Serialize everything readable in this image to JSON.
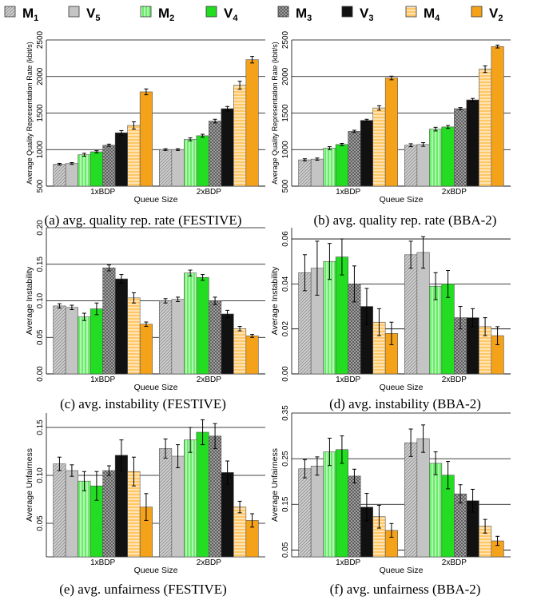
{
  "legend": {
    "entries": [
      {
        "base": "M",
        "sub": "1",
        "key": "M1"
      },
      {
        "base": "V",
        "sub": "5",
        "key": "V5"
      },
      {
        "base": "M",
        "sub": "2",
        "key": "M2"
      },
      {
        "base": "V",
        "sub": "4",
        "key": "V4"
      },
      {
        "base": "M",
        "sub": "3",
        "key": "M3"
      },
      {
        "base": "V",
        "sub": "3",
        "key": "V3"
      },
      {
        "base": "M",
        "sub": "4",
        "key": "M4"
      },
      {
        "base": "V",
        "sub": "2",
        "key": "V2"
      }
    ]
  },
  "series_style": [
    {
      "key": "M1",
      "color": "#d0d0d0",
      "pattern": "diag"
    },
    {
      "key": "V5",
      "color": "#c4c4c4",
      "pattern": "solid"
    },
    {
      "key": "M2",
      "color": "#66ee66",
      "pattern": "vert"
    },
    {
      "key": "V4",
      "color": "#22dd22",
      "pattern": "solid"
    },
    {
      "key": "M3",
      "color": "#505050",
      "pattern": "cross"
    },
    {
      "key": "V3",
      "color": "#111111",
      "pattern": "solid"
    },
    {
      "key": "M4",
      "color": "#ffc766",
      "pattern": "horiz"
    },
    {
      "key": "V2",
      "color": "#f5a21b",
      "pattern": "solid"
    }
  ],
  "chart_data": [
    {
      "id": "a",
      "type": "bar",
      "caption": "(a) avg. quality rep. rate (FESTIVE)",
      "ylabel": "Average Quality Representation Rate (kbit/s)",
      "xlabel": "Queue Size",
      "categories": [
        "1xBDP",
        "2xBDP"
      ],
      "ylim": [
        500,
        2500
      ],
      "yticks": [
        "500",
        "1000",
        "1500",
        "2000",
        "2500"
      ],
      "ytick_values": [
        500,
        1000,
        1500,
        2000,
        2500
      ],
      "grid": true,
      "series": [
        {
          "key": "M1",
          "values": [
            800,
            1000
          ],
          "err": [
            12,
            12
          ]
        },
        {
          "key": "V5",
          "values": [
            810,
            1000
          ],
          "err": [
            12,
            12
          ]
        },
        {
          "key": "M2",
          "values": [
            930,
            1140
          ],
          "err": [
            20,
            20
          ]
        },
        {
          "key": "V4",
          "values": [
            970,
            1190
          ],
          "err": [
            15,
            20
          ]
        },
        {
          "key": "M3",
          "values": [
            1060,
            1390
          ],
          "err": [
            15,
            25
          ]
        },
        {
          "key": "V3",
          "values": [
            1230,
            1560
          ],
          "err": [
            30,
            30
          ]
        },
        {
          "key": "M4",
          "values": [
            1330,
            1880
          ],
          "err": [
            50,
            55
          ]
        },
        {
          "key": "V2",
          "values": [
            1790,
            2230
          ],
          "err": [
            40,
            45
          ]
        }
      ]
    },
    {
      "id": "b",
      "type": "bar",
      "caption": "(b) avg. quality rep. rate (BBA-2)",
      "ylabel": "Average Quality Representation Rate (kbit/s)",
      "xlabel": "Queue Size",
      "categories": [
        "1xBDP",
        "2xBDP"
      ],
      "ylim": [
        500,
        2500
      ],
      "yticks": [
        "500",
        "1000",
        "1500",
        "2000",
        "2500"
      ],
      "ytick_values": [
        500,
        1000,
        1500,
        2000,
        2500
      ],
      "grid": true,
      "series": [
        {
          "key": "M1",
          "values": [
            860,
            1060
          ],
          "err": [
            15,
            20
          ]
        },
        {
          "key": "V5",
          "values": [
            870,
            1070
          ],
          "err": [
            15,
            25
          ]
        },
        {
          "key": "M2",
          "values": [
            1020,
            1280
          ],
          "err": [
            20,
            25
          ]
        },
        {
          "key": "V4",
          "values": [
            1070,
            1310
          ],
          "err": [
            15,
            20
          ]
        },
        {
          "key": "M3",
          "values": [
            1250,
            1560
          ],
          "err": [
            15,
            15
          ]
        },
        {
          "key": "V3",
          "values": [
            1400,
            1680
          ],
          "err": [
            15,
            20
          ]
        },
        {
          "key": "M4",
          "values": [
            1570,
            2100
          ],
          "err": [
            30,
            45
          ]
        },
        {
          "key": "V2",
          "values": [
            1980,
            2410
          ],
          "err": [
            25,
            20
          ]
        }
      ]
    },
    {
      "id": "c",
      "type": "bar",
      "caption": "(c) avg. instability (FESTIVE)",
      "ylabel": "Average Instability",
      "xlabel": "Queue Size",
      "categories": [
        "1xBDP",
        "2xBDP"
      ],
      "ylim": [
        0,
        0.2
      ],
      "yticks": [
        "0.00",
        "0.05",
        "0.10",
        "0.15",
        "0.20"
      ],
      "ytick_values": [
        0,
        0.05,
        0.1,
        0.15,
        0.2
      ],
      "grid": true,
      "series": [
        {
          "key": "M1",
          "values": [
            0.093,
            0.1
          ],
          "err": [
            0.003,
            0.003
          ]
        },
        {
          "key": "V5",
          "values": [
            0.091,
            0.102
          ],
          "err": [
            0.003,
            0.003
          ]
        },
        {
          "key": "M2",
          "values": [
            0.078,
            0.138
          ],
          "err": [
            0.005,
            0.004
          ]
        },
        {
          "key": "V4",
          "values": [
            0.089,
            0.132
          ],
          "err": [
            0.008,
            0.004
          ]
        },
        {
          "key": "M3",
          "values": [
            0.145,
            0.1
          ],
          "err": [
            0.004,
            0.005
          ]
        },
        {
          "key": "V3",
          "values": [
            0.13,
            0.082
          ],
          "err": [
            0.006,
            0.005
          ]
        },
        {
          "key": "M4",
          "values": [
            0.104,
            0.062
          ],
          "err": [
            0.007,
            0.003
          ]
        },
        {
          "key": "V2",
          "values": [
            0.068,
            0.052
          ],
          "err": [
            0.003,
            0.002
          ]
        }
      ]
    },
    {
      "id": "d",
      "type": "bar",
      "caption": "(d) avg. instability (BBA-2)",
      "ylabel": "Average Instability",
      "xlabel": "Queue Size",
      "categories": [
        "1xBDP",
        "2xBDP"
      ],
      "ylim": [
        0,
        0.065
      ],
      "yticks": [
        "0.00",
        "0.02",
        "0.04",
        "0.06"
      ],
      "ytick_values": [
        0,
        0.02,
        0.04,
        0.06
      ],
      "grid": true,
      "series": [
        {
          "key": "M1",
          "values": [
            0.045,
            0.053
          ],
          "err": [
            0.008,
            0.006
          ]
        },
        {
          "key": "V5",
          "values": [
            0.047,
            0.054
          ],
          "err": [
            0.012,
            0.007
          ]
        },
        {
          "key": "M2",
          "values": [
            0.05,
            0.039
          ],
          "err": [
            0.008,
            0.006
          ]
        },
        {
          "key": "V4",
          "values": [
            0.052,
            0.04
          ],
          "err": [
            0.008,
            0.006
          ]
        },
        {
          "key": "M3",
          "values": [
            0.04,
            0.025
          ],
          "err": [
            0.008,
            0.005
          ]
        },
        {
          "key": "V3",
          "values": [
            0.03,
            0.025
          ],
          "err": [
            0.008,
            0.004
          ]
        },
        {
          "key": "M4",
          "values": [
            0.023,
            0.021
          ],
          "err": [
            0.006,
            0.004
          ]
        },
        {
          "key": "V2",
          "values": [
            0.018,
            0.017
          ],
          "err": [
            0.005,
            0.004
          ]
        }
      ]
    },
    {
      "id": "e",
      "type": "bar",
      "caption": "(e) avg. unfairness (FESTIVE)",
      "ylabel": "Average Unfairness",
      "xlabel": "Queue Size",
      "categories": [
        "1xBDP",
        "2xBDP"
      ],
      "ylim": [
        0.015,
        0.165
      ],
      "yticks": [
        "0.05",
        "0.10",
        "0.15"
      ],
      "ytick_values": [
        0.05,
        0.1,
        0.15
      ],
      "grid": true,
      "series": [
        {
          "key": "M1",
          "values": [
            0.112,
            0.128
          ],
          "err": [
            0.007,
            0.01
          ]
        },
        {
          "key": "V5",
          "values": [
            0.105,
            0.12
          ],
          "err": [
            0.006,
            0.012
          ]
        },
        {
          "key": "M2",
          "values": [
            0.094,
            0.137
          ],
          "err": [
            0.01,
            0.013
          ]
        },
        {
          "key": "V4",
          "values": [
            0.089,
            0.145
          ],
          "err": [
            0.015,
            0.013
          ]
        },
        {
          "key": "M3",
          "values": [
            0.105,
            0.141
          ],
          "err": [
            0.005,
            0.013
          ]
        },
        {
          "key": "V3",
          "values": [
            0.121,
            0.103
          ],
          "err": [
            0.016,
            0.012
          ]
        },
        {
          "key": "M4",
          "values": [
            0.104,
            0.067
          ],
          "err": [
            0.015,
            0.006
          ]
        },
        {
          "key": "V2",
          "values": [
            0.067,
            0.053
          ],
          "err": [
            0.014,
            0.007
          ]
        }
      ]
    },
    {
      "id": "f",
      "type": "bar",
      "caption": "(f) avg. unfairness (BBA-2)",
      "ylabel": "Average Unfairness",
      "xlabel": "Queue Size",
      "categories": [
        "1xBDP",
        "2xBDP"
      ],
      "ylim": [
        0.035,
        0.35
      ],
      "yticks": [
        "0.05",
        "0.15",
        "0.25",
        "0.35"
      ],
      "ytick_values": [
        0.05,
        0.15,
        0.25,
        0.35
      ],
      "grid": true,
      "series": [
        {
          "key": "M1",
          "values": [
            0.228,
            0.285
          ],
          "err": [
            0.02,
            0.03
          ]
        },
        {
          "key": "V5",
          "values": [
            0.234,
            0.294
          ],
          "err": [
            0.02,
            0.03
          ]
        },
        {
          "key": "M2",
          "values": [
            0.265,
            0.24
          ],
          "err": [
            0.03,
            0.025
          ]
        },
        {
          "key": "V4",
          "values": [
            0.27,
            0.214
          ],
          "err": [
            0.03,
            0.03
          ]
        },
        {
          "key": "M3",
          "values": [
            0.212,
            0.173
          ],
          "err": [
            0.015,
            0.02
          ]
        },
        {
          "key": "V3",
          "values": [
            0.144,
            0.158
          ],
          "err": [
            0.03,
            0.025
          ]
        },
        {
          "key": "M4",
          "values": [
            0.123,
            0.102
          ],
          "err": [
            0.025,
            0.015
          ]
        },
        {
          "key": "V2",
          "values": [
            0.093,
            0.07
          ],
          "err": [
            0.015,
            0.01
          ]
        }
      ]
    }
  ]
}
